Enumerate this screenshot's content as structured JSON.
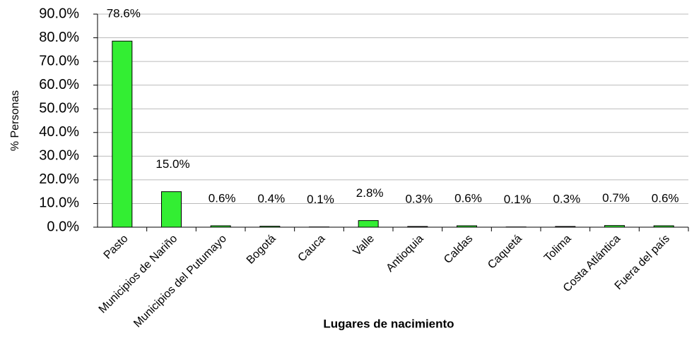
{
  "chart_data": {
    "type": "bar",
    "categories": [
      "Pasto",
      "Municipios de Nariño",
      "Municipios del Putumayo",
      "Bogotá",
      "Cauca",
      "Valle",
      "Antioquia",
      "Caldas",
      "Caquetá",
      "Tolima",
      "Costa Atlántica",
      "Fuera del país"
    ],
    "values": [
      78.6,
      15.0,
      0.6,
      0.4,
      0.1,
      2.8,
      0.3,
      0.6,
      0.1,
      0.3,
      0.7,
      0.6
    ],
    "value_labels": [
      "78.6%",
      "15.0%",
      "0.6%",
      "0.4%",
      "0.1%",
      "2.8%",
      "0.3%",
      "0.6%",
      "0.1%",
      "0.3%",
      "0.7%",
      "0.6%"
    ],
    "color": "#33ee33",
    "x_label": "Lugares de nacimiento",
    "y_label": "% Personas",
    "ylim": [
      0,
      90
    ],
    "yticks": [
      {
        "value": 0,
        "label": "0.0%"
      },
      {
        "value": 10,
        "label": "10.0%"
      },
      {
        "value": 20,
        "label": "20.0%"
      },
      {
        "value": 30,
        "label": "30.0%"
      },
      {
        "value": 40,
        "label": "40.0%"
      },
      {
        "value": 50,
        "label": "50.0%"
      },
      {
        "value": 60,
        "label": "60.0%"
      },
      {
        "value": 70,
        "label": "70.0%"
      },
      {
        "value": 80,
        "label": "80.0%"
      },
      {
        "value": 90,
        "label": "90.0%"
      }
    ],
    "grid": true
  }
}
